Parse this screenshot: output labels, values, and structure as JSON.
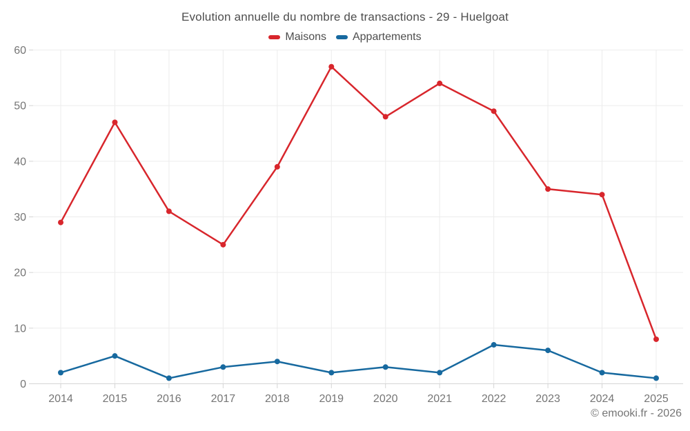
{
  "header": {
    "title": "Evolution annuelle du nombre de transactions - 29 - Huelgoat"
  },
  "footer": {
    "credit": "© emooki.fr - 2026"
  },
  "chart_data": {
    "type": "line",
    "title": "Evolution annuelle du nombre de transactions - 29 - Huelgoat",
    "categories": [
      "2014",
      "2015",
      "2016",
      "2017",
      "2018",
      "2019",
      "2020",
      "2021",
      "2022",
      "2023",
      "2024",
      "2025"
    ],
    "series": [
      {
        "name": "Maisons",
        "color": "#d8262c",
        "values": [
          29,
          47,
          31,
          25,
          39,
          57,
          48,
          54,
          49,
          35,
          34,
          8
        ]
      },
      {
        "name": "Appartements",
        "color": "#17699f",
        "values": [
          2,
          5,
          1,
          3,
          4,
          2,
          3,
          2,
          7,
          6,
          2,
          1
        ]
      }
    ],
    "xlabel": "",
    "ylabel": "",
    "ylim": [
      0,
      60
    ],
    "yticks": [
      0,
      10,
      20,
      30,
      40,
      50,
      60
    ],
    "grid": true,
    "legend_position": "top",
    "marker": "circle",
    "line_width": 2.5,
    "marker_radius": 4
  },
  "style": {
    "background": "#ffffff",
    "grid_color": "#ececec",
    "axis_color": "#d4d4d4",
    "tick_label_color": "#757575",
    "title_color": "#4d4d4d",
    "footer_color": "#757575"
  }
}
